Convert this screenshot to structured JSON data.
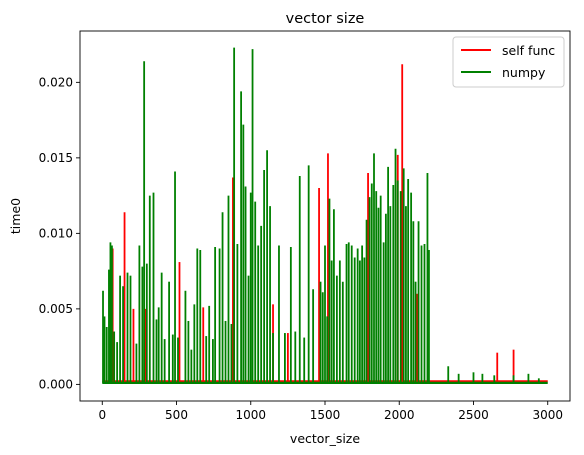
{
  "chart_data": {
    "type": "line",
    "title": "vector size",
    "xlabel": "vector_size",
    "ylabel": "time0",
    "xlim": [
      -150,
      3150
    ],
    "ylim": [
      -0.0011,
      0.0234
    ],
    "xticks": [
      0,
      500,
      1000,
      1500,
      2000,
      2500,
      3000
    ],
    "xtick_labels": [
      "0",
      "500",
      "1000",
      "1500",
      "2000",
      "2500",
      "3000"
    ],
    "yticks": [
      0,
      0.005,
      0.01,
      0.015,
      0.02
    ],
    "ytick_labels": [
      "0.000",
      "0.005",
      "0.010",
      "0.015",
      "0.020"
    ],
    "grid": false,
    "legend_position": "top-right",
    "series": [
      {
        "name": "self func",
        "color": "#ff0000",
        "baseline": 0.0002,
        "spikes": [
          [
            70,
            0.009
          ],
          [
            150,
            0.0114
          ],
          [
            210,
            0.005
          ],
          [
            290,
            0.005
          ],
          [
            520,
            0.0081
          ],
          [
            680,
            0.0051
          ],
          [
            880,
            0.0137
          ],
          [
            1150,
            0.0053
          ],
          [
            1250,
            0.0034
          ],
          [
            1460,
            0.013
          ],
          [
            1520,
            0.0153
          ],
          [
            1790,
            0.014
          ],
          [
            1990,
            0.0152
          ],
          [
            2020,
            0.0212
          ],
          [
            2120,
            0.006
          ],
          [
            2660,
            0.0021
          ],
          [
            2770,
            0.0023
          ]
        ]
      },
      {
        "name": "numpy",
        "color": "#008000",
        "baseline": 0.0001,
        "spikes": [
          [
            5,
            0.0062
          ],
          [
            15,
            0.0045
          ],
          [
            30,
            0.0038
          ],
          [
            45,
            0.0076
          ],
          [
            55,
            0.0094
          ],
          [
            65,
            0.0092
          ],
          [
            80,
            0.0035
          ],
          [
            100,
            0.0028
          ],
          [
            120,
            0.0072
          ],
          [
            140,
            0.0065
          ],
          [
            170,
            0.0074
          ],
          [
            190,
            0.0072
          ],
          [
            230,
            0.0027
          ],
          [
            250,
            0.0092
          ],
          [
            270,
            0.0078
          ],
          [
            282,
            0.0214
          ],
          [
            300,
            0.008
          ],
          [
            320,
            0.0125
          ],
          [
            345,
            0.0127
          ],
          [
            365,
            0.0043
          ],
          [
            380,
            0.0051
          ],
          [
            400,
            0.0074
          ],
          [
            420,
            0.003
          ],
          [
            450,
            0.0068
          ],
          [
            475,
            0.0033
          ],
          [
            490,
            0.0141
          ],
          [
            510,
            0.0031
          ],
          [
            560,
            0.0062
          ],
          [
            580,
            0.0042
          ],
          [
            600,
            0.0023
          ],
          [
            620,
            0.0053
          ],
          [
            640,
            0.009
          ],
          [
            660,
            0.0089
          ],
          [
            700,
            0.0032
          ],
          [
            720,
            0.0052
          ],
          [
            745,
            0.003
          ],
          [
            760,
            0.0091
          ],
          [
            790,
            0.009
          ],
          [
            810,
            0.0114
          ],
          [
            830,
            0.0042
          ],
          [
            850,
            0.0125
          ],
          [
            870,
            0.004
          ],
          [
            888,
            0.0223
          ],
          [
            910,
            0.0093
          ],
          [
            935,
            0.0194
          ],
          [
            950,
            0.0172
          ],
          [
            965,
            0.0131
          ],
          [
            985,
            0.0072
          ],
          [
            1000,
            0.0127
          ],
          [
            1012,
            0.0222
          ],
          [
            1030,
            0.0121
          ],
          [
            1050,
            0.0092
          ],
          [
            1070,
            0.0105
          ],
          [
            1090,
            0.0142
          ],
          [
            1110,
            0.0155
          ],
          [
            1130,
            0.0118
          ],
          [
            1150,
            0.0034
          ],
          [
            1190,
            0.0092
          ],
          [
            1230,
            0.0034
          ],
          [
            1270,
            0.0091
          ],
          [
            1300,
            0.0035
          ],
          [
            1330,
            0.0138
          ],
          [
            1360,
            0.0031
          ],
          [
            1390,
            0.0145
          ],
          [
            1420,
            0.0063
          ],
          [
            1470,
            0.0068
          ],
          [
            1485,
            0.0061
          ],
          [
            1500,
            0.0092
          ],
          [
            1515,
            0.0045
          ],
          [
            1530,
            0.0123
          ],
          [
            1545,
            0.0082
          ],
          [
            1560,
            0.0116
          ],
          [
            1580,
            0.0072
          ],
          [
            1600,
            0.0082
          ],
          [
            1620,
            0.0068
          ],
          [
            1645,
            0.0093
          ],
          [
            1660,
            0.0094
          ],
          [
            1680,
            0.0092
          ],
          [
            1700,
            0.0084
          ],
          [
            1720,
            0.009
          ],
          [
            1735,
            0.0082
          ],
          [
            1750,
            0.0092
          ],
          [
            1765,
            0.0084
          ],
          [
            1780,
            0.0109
          ],
          [
            1800,
            0.0124
          ],
          [
            1815,
            0.0133
          ],
          [
            1830,
            0.0153
          ],
          [
            1845,
            0.0128
          ],
          [
            1860,
            0.0117
          ],
          [
            1875,
            0.0125
          ],
          [
            1895,
            0.0094
          ],
          [
            1910,
            0.0113
          ],
          [
            1925,
            0.0144
          ],
          [
            1940,
            0.0118
          ],
          [
            1960,
            0.0132
          ],
          [
            1975,
            0.0156
          ],
          [
            1990,
            0.0135
          ],
          [
            2010,
            0.0128
          ],
          [
            2030,
            0.0143
          ],
          [
            2045,
            0.0118
          ],
          [
            2060,
            0.0136
          ],
          [
            2080,
            0.0127
          ],
          [
            2095,
            0.0108
          ],
          [
            2110,
            0.0068
          ],
          [
            2130,
            0.0108
          ],
          [
            2150,
            0.0092
          ],
          [
            2170,
            0.0093
          ],
          [
            2190,
            0.014
          ],
          [
            2200,
            0.0089
          ],
          [
            2330,
            0.0012
          ],
          [
            2400,
            0.0007
          ],
          [
            2500,
            0.0008
          ],
          [
            2560,
            0.0007
          ],
          [
            2640,
            0.0006
          ],
          [
            2770,
            0.0006
          ],
          [
            2870,
            0.0007
          ],
          [
            2940,
            0.0004
          ]
        ]
      }
    ]
  }
}
